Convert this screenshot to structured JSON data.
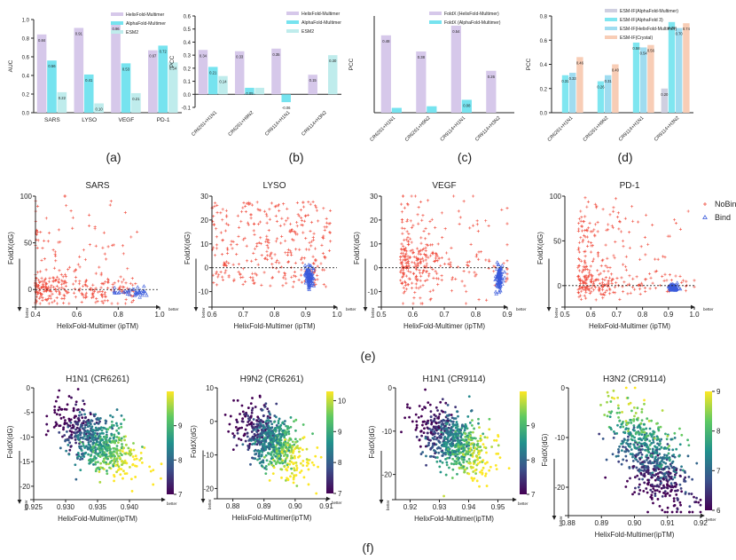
{
  "colors": {
    "helix": "#d6c8ea",
    "alpha": "#76e3ef",
    "esm2": "#bfecec",
    "esmf_af": "#cfcfe0",
    "esmf_af3": "#7fe6f0",
    "esmf_hf": "#9fdcf0",
    "esmf_crystal": "#f8cdb6",
    "nobind": "#f0493a",
    "bind": "#3b5bdb"
  },
  "panel_labels": {
    "a": "(a)",
    "b": "(b)",
    "c": "(c)",
    "d": "(d)",
    "e": "(e)",
    "f": "(f)"
  },
  "chart_data": [
    {
      "id": "a",
      "type": "bar",
      "ylabel": "AUC",
      "ylim": [
        0,
        1.0
      ],
      "yticks": [
        "0.0",
        "0.2",
        "0.4",
        "0.6",
        "0.8",
        "1.0"
      ],
      "categories": [
        "SARS",
        "LYSO",
        "VEGF",
        "PD-1"
      ],
      "series": [
        {
          "name": "HelixFold-Multimer",
          "color": "#d6c8ea",
          "values": [
            0.84,
            0.91,
            0.96,
            0.67
          ],
          "labels": [
            "0.84",
            "0.91",
            "0.96",
            "0.67"
          ]
        },
        {
          "name": "AlphaFold-Multimer",
          "color": "#76e3ef",
          "values": [
            0.56,
            0.41,
            0.53,
            0.72
          ],
          "labels": [
            "0.56",
            "0.41",
            "0.53",
            "0.72"
          ]
        },
        {
          "name": "ESM2",
          "color": "#bfecec",
          "values": [
            0.22,
            0.1,
            0.21,
            0.54
          ],
          "labels": [
            "0.22",
            "0.10",
            "0.21",
            "0.54"
          ]
        }
      ],
      "legend": "top-right"
    },
    {
      "id": "b",
      "type": "bar",
      "ylabel": "PCC",
      "ylim": [
        -0.1,
        0.6
      ],
      "yticks": [
        "-0.1",
        "0.0",
        "0.1",
        "0.2",
        "0.3",
        "0.4",
        "0.5",
        "0.6"
      ],
      "categories": [
        "CR6261+H1N1",
        "CR6261+H9N2",
        "CR9114+H1N1",
        "CR9114+H3N2"
      ],
      "series": [
        {
          "name": "HelixFold-Multimer",
          "color": "#d6c8ea",
          "values": [
            0.34,
            0.33,
            0.35,
            0.15
          ],
          "labels": [
            "0.34",
            "0.33",
            "0.35",
            "0.15"
          ]
        },
        {
          "name": "AlphaFold-Multimer",
          "color": "#76e3ef",
          "values": [
            0.21,
            0.05,
            -0.06,
            0.0
          ],
          "labels": [
            "0.21",
            "0.05",
            "-0.06",
            ""
          ]
        },
        {
          "name": "ESM2",
          "color": "#bfecec",
          "values": [
            0.14,
            0.05,
            0.0,
            0.3
          ],
          "labels": [
            "0.14",
            "",
            "",
            "0.30"
          ]
        }
      ],
      "legend": "top-right"
    },
    {
      "id": "c",
      "type": "bar",
      "ylabel": "PCC",
      "ylim": [
        0,
        0.6
      ],
      "yticks": [],
      "categories": [
        "CR6261+H1N1",
        "CR6261+H9N2",
        "CR9114+H1N1",
        "CR9114+H3N2"
      ],
      "series": [
        {
          "name": "FoldX (HelixFold-Multimer)",
          "color": "#d6c8ea",
          "values": [
            0.48,
            0.38,
            0.54,
            0.26
          ],
          "labels": [
            "0.48",
            "0.38",
            "0.54",
            "0.26"
          ]
        },
        {
          "name": "FoldX (AlphaFold-Multimer)",
          "color": "#76e3ef",
          "values": [
            0.03,
            0.04,
            0.08,
            0.0
          ],
          "labels": [
            "",
            "",
            "0.08",
            ""
          ]
        }
      ],
      "legend": "top-right"
    },
    {
      "id": "d",
      "type": "bar",
      "ylabel": "PCC",
      "ylim": [
        0,
        0.8
      ],
      "yticks": [
        "0.0",
        "0.2",
        "0.4",
        "0.6",
        "0.8"
      ],
      "categories": [
        "CR6261+H1N1",
        "CR6261+H9N2",
        "CR9114+H1N1",
        "CR9114+H3N2"
      ],
      "series": [
        {
          "name": "ESM-IF(AlphaFold-Multimer)",
          "color": "#cfcfe0",
          "values": [
            0.0,
            0.0,
            0.0,
            0.2
          ],
          "labels": [
            "",
            "",
            "",
            "0.20"
          ]
        },
        {
          "name": "ESM-IF(AlphaFold 3)",
          "color": "#7fe6f0",
          "values": [
            0.31,
            0.26,
            0.58,
            0.75
          ],
          "labels": [
            "0.31",
            "0.26",
            "0.58",
            "0.75"
          ]
        },
        {
          "name": "ESM-IF(HelixFold-Multimer)",
          "color": "#9fdcf0",
          "values": [
            0.33,
            0.31,
            0.54,
            0.7
          ],
          "labels": [
            "0.33",
            "0.31",
            "0.54",
            "0.70"
          ]
        },
        {
          "name": "ESM-IF(Crystal)",
          "color": "#f8cdb6",
          "values": [
            0.46,
            0.4,
            0.56,
            0.74
          ],
          "labels": [
            "0.46",
            "0.40",
            "0.56",
            "0.74"
          ]
        }
      ],
      "legend": "top-right"
    },
    {
      "id": "e1",
      "type": "scatter",
      "title": "SARS",
      "xlabel": "HelixFold-Multimer (ipTM)",
      "ylabel": "FoldX(dG)",
      "xlim": [
        0.4,
        1.0
      ],
      "ylim": [
        -15,
        100
      ],
      "xticks": [
        "0.4",
        "0.6",
        "0.8",
        "1.0"
      ],
      "yticks": [
        "0",
        "50",
        "100"
      ],
      "ref_y": 0
    },
    {
      "id": "e2",
      "type": "scatter",
      "title": "LYSO",
      "xlabel": "HelixFold-Multimer (ipTM)",
      "ylabel": "FoldX(dG)",
      "xlim": [
        0.6,
        1.0
      ],
      "ylim": [
        -15,
        30
      ],
      "xticks": [
        "0.6",
        "0.7",
        "0.8",
        "0.9",
        "1.0"
      ],
      "yticks": [
        "-10",
        "0",
        "10",
        "20",
        "30"
      ],
      "ref_y": 0
    },
    {
      "id": "e3",
      "type": "scatter",
      "title": "VEGF",
      "xlabel": "HelixFold-Multimer (ipTM)",
      "ylabel": "FoldX(dG)",
      "xlim": [
        0.5,
        0.9
      ],
      "ylim": [
        -15,
        30
      ],
      "xticks": [
        "0.5",
        "0.6",
        "0.7",
        "0.8",
        "0.9"
      ],
      "yticks": [
        "-10",
        "0",
        "10",
        "20",
        "30"
      ],
      "ref_y": 0
    },
    {
      "id": "e4",
      "type": "scatter",
      "title": "PD-1",
      "xlabel": "HelixFold-Multimer (ipTM)",
      "ylabel": "FoldX(dG)",
      "xlim": [
        0.5,
        1.0
      ],
      "ylim": [
        -20,
        100
      ],
      "xticks": [
        "0.5",
        "0.6",
        "0.7",
        "0.8",
        "0.9",
        "1.0"
      ],
      "yticks": [
        "0",
        "50",
        "100"
      ],
      "ref_y": 0,
      "legend": [
        {
          "name": "NoBind",
          "marker": "plus",
          "color": "#f0493a"
        },
        {
          "name": "Bind",
          "marker": "triangle",
          "color": "#3b5bdb"
        }
      ]
    },
    {
      "id": "f1",
      "type": "scatter",
      "title": "H1N1 (CR6261)",
      "xlabel": "HelixFold-Multimer(ipTM)",
      "ylabel": "FoldX(dG)",
      "xlim": [
        0.925,
        0.945
      ],
      "ylim": [
        -22,
        0
      ],
      "xticks": [
        "0.925",
        "0.930",
        "0.935",
        "0.940"
      ],
      "yticks": [
        "0",
        "-5",
        "-10",
        "-15",
        "-20"
      ],
      "colorbar": {
        "min": 7,
        "max": 10,
        "ticks": [
          "7",
          "8",
          "9"
        ]
      }
    },
    {
      "id": "f2",
      "type": "scatter",
      "title": "H9N2 (CR6261)",
      "xlabel": "HelixFold-Multimer(ipTM)",
      "ylabel": "FoldX(dG)",
      "xlim": [
        0.875,
        0.91
      ],
      "ylim": [
        -22,
        10
      ],
      "xticks": [
        "0.88",
        "0.89",
        "0.90",
        "0.91"
      ],
      "yticks": [
        "10",
        "0",
        "-10",
        "-20"
      ],
      "colorbar": {
        "min": 7,
        "max": 10.3,
        "ticks": [
          "7",
          "8",
          "9",
          "10"
        ]
      }
    },
    {
      "id": "f3",
      "type": "scatter",
      "title": "H1N1 (CR9114)",
      "xlabel": "HelixFold-Multimer(ipTM)",
      "ylabel": "FoldX(dG)",
      "xlim": [
        0.915,
        0.955
      ],
      "ylim": [
        -25,
        0
      ],
      "xticks": [
        "0.92",
        "0.93",
        "0.94",
        "0.95"
      ],
      "yticks": [
        "0",
        "-10",
        "-20"
      ],
      "colorbar": {
        "min": 7,
        "max": 10,
        "ticks": [
          "7",
          "8",
          "9"
        ]
      }
    },
    {
      "id": "f4",
      "type": "scatter",
      "title": "H3N2 (CR9114)",
      "xlabel": "HelixFold-Multimer(ipTM)",
      "ylabel": "FoldX(dG)",
      "xlim": [
        0.88,
        0.92
      ],
      "ylim": [
        -25,
        0
      ],
      "xticks": [
        "0.88",
        "0.89",
        "0.90",
        "0.91",
        "0.92"
      ],
      "yticks": [
        "0",
        "-10",
        "-20"
      ],
      "colorbar": {
        "min": 6,
        "max": 9,
        "ticks": [
          "6",
          "7",
          "8",
          "9"
        ]
      }
    }
  ],
  "axis_notes": {
    "better": "better"
  }
}
